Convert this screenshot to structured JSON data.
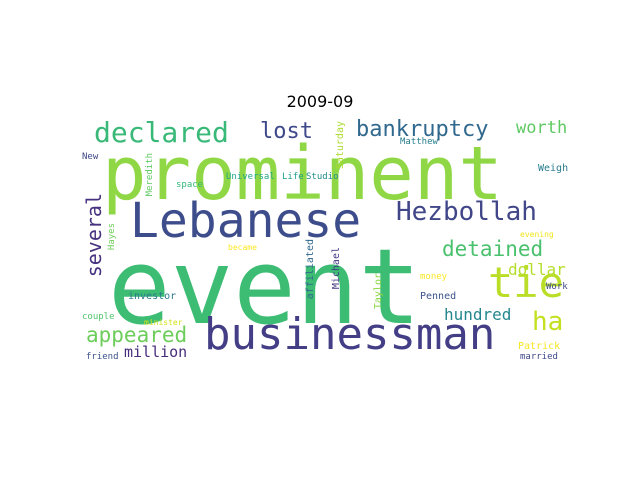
{
  "title": "2009-09",
  "words": [
    {
      "text": "event",
      "color": "#3dbc74",
      "rotate": false
    },
    {
      "text": "prominent",
      "color": "#8fd744",
      "rotate": false
    },
    {
      "text": "Lebanese",
      "color": "#3d4c8a",
      "rotate": false
    },
    {
      "text": "businessman",
      "color": "#433e85",
      "rotate": false
    },
    {
      "text": "Hezbollah",
      "color": "#404688",
      "rotate": false
    },
    {
      "text": "tie",
      "color": "#bade28",
      "rotate": false
    },
    {
      "text": "declared",
      "color": "#38b977",
      "rotate": false
    },
    {
      "text": "bankruptcy",
      "color": "#31688e",
      "rotate": false
    },
    {
      "text": "lost",
      "color": "#3e4989",
      "rotate": false
    },
    {
      "text": "detained",
      "color": "#4ac16d",
      "rotate": false
    },
    {
      "text": "ha",
      "color": "#c5e021",
      "rotate": false
    },
    {
      "text": "several",
      "color": "#46327e",
      "rotate": true
    },
    {
      "text": "appeared",
      "color": "#6ccd5a",
      "rotate": false
    },
    {
      "text": "worth",
      "color": "#5ec962",
      "rotate": false
    },
    {
      "text": "hundred",
      "color": "#24878e",
      "rotate": false
    },
    {
      "text": "dollar",
      "color": "#b5de2b",
      "rotate": false
    },
    {
      "text": "million",
      "color": "#472d7b",
      "rotate": false
    },
    {
      "text": "Universal",
      "color": "#21a685",
      "rotate": false
    },
    {
      "text": "Life",
      "color": "#1f9e89",
      "rotate": false
    },
    {
      "text": "Studio",
      "color": "#228b8d",
      "rotate": false
    },
    {
      "text": "Saturday",
      "color": "#addc30",
      "rotate": true
    },
    {
      "text": "Matthew",
      "color": "#287d8e",
      "rotate": false
    },
    {
      "text": "Meredith",
      "color": "#5ec962",
      "rotate": true
    },
    {
      "text": "Michael",
      "color": "#443983",
      "rotate": true
    },
    {
      "text": "Taylor",
      "color": "#8bd646",
      "rotate": true
    },
    {
      "text": "Hayes",
      "color": "#6ece58",
      "rotate": true
    },
    {
      "text": "affiliated",
      "color": "#31688e",
      "rotate": true
    },
    {
      "text": "investor",
      "color": "#2a788e",
      "rotate": false
    },
    {
      "text": "Weigh",
      "color": "#287c8e",
      "rotate": false
    },
    {
      "text": "New",
      "color": "#3f4788",
      "rotate": false
    },
    {
      "text": "space",
      "color": "#35b779",
      "rotate": false
    },
    {
      "text": "became",
      "color": "#fde725",
      "rotate": false
    },
    {
      "text": "evening",
      "color": "#f1e51d",
      "rotate": false
    },
    {
      "text": "money",
      "color": "#fde725",
      "rotate": false
    },
    {
      "text": "Penned",
      "color": "#3b528b",
      "rotate": false
    },
    {
      "text": "Work",
      "color": "#3e4a89",
      "rotate": false
    },
    {
      "text": "couple",
      "color": "#50c46a",
      "rotate": false
    },
    {
      "text": "minister",
      "color": "#d2e21b",
      "rotate": false
    },
    {
      "text": "Patrick",
      "color": "#f8e621",
      "rotate": false
    },
    {
      "text": "friend",
      "color": "#3b528b",
      "rotate": false
    },
    {
      "text": "married",
      "color": "#3e4989",
      "rotate": false
    }
  ]
}
